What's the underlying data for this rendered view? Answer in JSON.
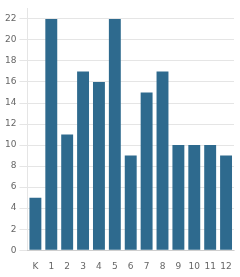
{
  "chart_data": {
    "type": "bar",
    "categories": [
      "K",
      "1",
      "2",
      "3",
      "4",
      "5",
      "6",
      "7",
      "8",
      "9",
      "10",
      "11",
      "12"
    ],
    "values": [
      5,
      22,
      11,
      17,
      16,
      22,
      9,
      15,
      17,
      10,
      10,
      10,
      9
    ],
    "color": "#2e6a8e",
    "ylim": [
      0,
      23
    ],
    "yticks": [
      0,
      2,
      4,
      6,
      8,
      10,
      12,
      14,
      16,
      18,
      20,
      22
    ],
    "grid": true
  }
}
